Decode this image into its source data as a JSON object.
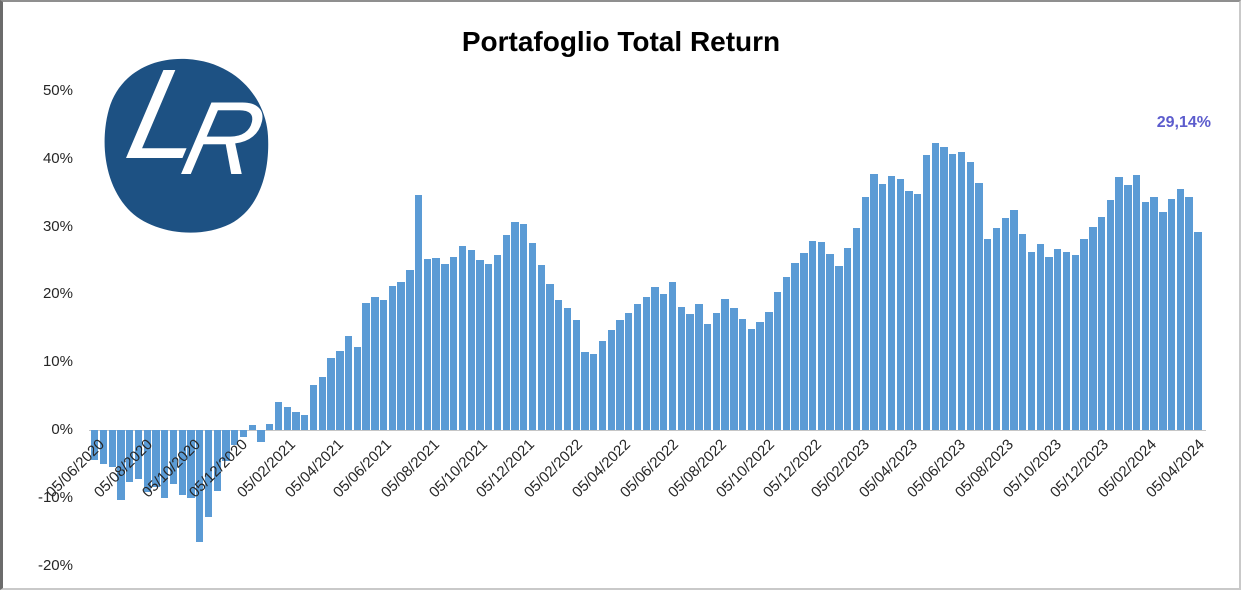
{
  "window": {
    "title": "Portafoglio Total Return"
  },
  "logo": {
    "letter_l": "L",
    "letter_r": "R",
    "bg_color": "#1d5183",
    "text_color": "#ffffff"
  },
  "annotation": {
    "text": "29,14%",
    "color": "#5c5ccd"
  },
  "chart_data": {
    "type": "bar",
    "title": "Portafoglio Total Return",
    "bar_color": "#5b9bd5",
    "grid": false,
    "legend": false,
    "ylim": [
      -20,
      50
    ],
    "y_tick_labels": [
      "50%",
      "40%",
      "30%",
      "20%",
      "10%",
      "0%",
      "-10%",
      "-20%"
    ],
    "x_tick_labels": [
      "05/06/2020",
      "05/08/2020",
      "05/10/2020",
      "05/12/2020",
      "05/02/2021",
      "05/04/2021",
      "05/06/2021",
      "05/08/2021",
      "05/10/2021",
      "05/12/2021",
      "05/02/2022",
      "05/04/2022",
      "05/06/2022",
      "05/08/2022",
      "05/10/2022",
      "05/12/2022",
      "05/02/2023",
      "05/04/2023",
      "05/06/2023",
      "05/08/2023",
      "05/10/2023",
      "05/12/2023",
      "05/02/2024",
      "05/04/2024"
    ],
    "values": [
      -4.4,
      -5.0,
      -5.4,
      -10.3,
      -7.7,
      -7.2,
      -9.1,
      -8.4,
      -10.1,
      -7.9,
      -9.6,
      -10.1,
      -16.5,
      -12.8,
      -9.0,
      -4.6,
      -2.2,
      -1.0,
      0.7,
      -1.8,
      0.9,
      4.2,
      3.4,
      2.6,
      2.2,
      6.6,
      7.8,
      10.6,
      11.6,
      13.8,
      12.3,
      18.8,
      19.6,
      19.2,
      21.2,
      21.9,
      23.6,
      34.7,
      25.2,
      25.3,
      24.5,
      25.5,
      27.1,
      26.5,
      25.1,
      24.5,
      25.8,
      28.8,
      30.7,
      30.4,
      27.6,
      24.3,
      21.5,
      19.2,
      18.0,
      16.2,
      11.5,
      11.2,
      13.2,
      14.7,
      16.2,
      17.2,
      18.6,
      19.6,
      21.1,
      20.1,
      21.9,
      18.1,
      17.1,
      18.6,
      15.6,
      17.3,
      19.3,
      18.0,
      16.4,
      14.9,
      15.9,
      17.4,
      20.3,
      22.5,
      24.6,
      26.1,
      27.9,
      27.7,
      26.0,
      24.2,
      26.9,
      29.8,
      34.3,
      37.8,
      36.3,
      37.5,
      37.0,
      35.2,
      34.8,
      40.6,
      42.3,
      41.8,
      40.7,
      41.0,
      39.6,
      36.5,
      28.2,
      29.8,
      31.2,
      32.4,
      28.9,
      26.3,
      27.5,
      25.5,
      26.7,
      26.3,
      25.8,
      28.2,
      29.9,
      31.4,
      33.9,
      37.3,
      36.1,
      37.6,
      33.6,
      34.4,
      32.2,
      34.1,
      35.6,
      34.4,
      29.14
    ],
    "last_value_label": "29,14%"
  }
}
